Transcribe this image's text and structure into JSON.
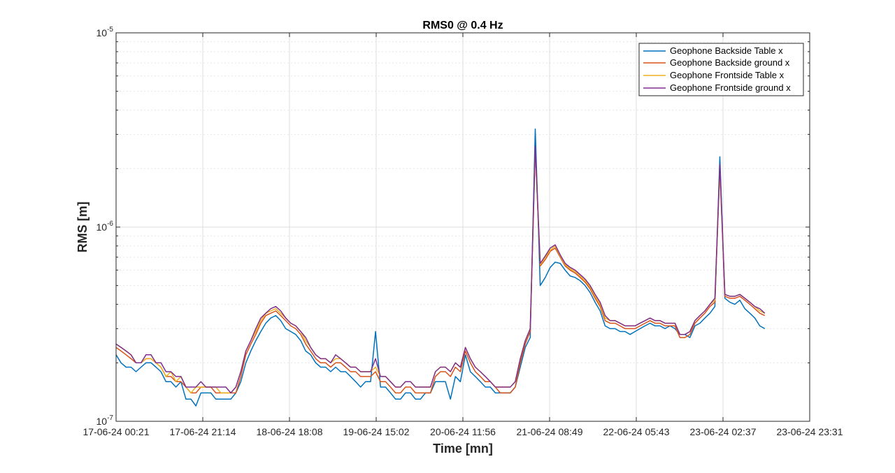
{
  "chart_data": {
    "type": "line",
    "title": "RMS0 @ 0.4 Hz",
    "xlabel": "Time [mn]",
    "ylabel": "RMS [m]",
    "yscale": "log",
    "ylim": [
      1e-07,
      1e-05
    ],
    "xlim": [
      "17-06-24 00:21",
      "23-06-24 23:31"
    ],
    "grid": true,
    "legend_position": "top-right",
    "x_ticks": [
      "17-06-24 00:21",
      "17-06-24 21:14",
      "18-06-24 18:08",
      "19-06-24 15:02",
      "20-06-24 11:56",
      "21-06-24 08:49",
      "22-06-24 05:43",
      "23-06-24 02:37",
      "23-06-24 23:31"
    ],
    "y_ticks": [
      {
        "value": 1e-07,
        "base": "10",
        "exp": "-7"
      },
      {
        "value": 1e-06,
        "base": "10",
        "exp": "-6"
      },
      {
        "value": 1e-05,
        "base": "10",
        "exp": "-5"
      }
    ],
    "x_hours": [
      0,
      1.2,
      2.4,
      3.6,
      4.8,
      6,
      7.2,
      8.4,
      9.6,
      10.8,
      12,
      13.2,
      14.4,
      15.6,
      16.8,
      18,
      19.2,
      20.4,
      21.6,
      22.8,
      24,
      25.2,
      26.4,
      27.6,
      28.8,
      30,
      31.2,
      32.4,
      33.6,
      34.8,
      36,
      37.2,
      38.4,
      39.6,
      40.8,
      42,
      43.2,
      44.4,
      45.6,
      46.8,
      48,
      49.2,
      50.4,
      51.6,
      52.8,
      54,
      55.2,
      56.4,
      57.6,
      58.8,
      60,
      61.2,
      62.4,
      63.6,
      64.8,
      66,
      67.2,
      68.4,
      69.6,
      70.8,
      72,
      73.2,
      74.4,
      75.6,
      76.8,
      78,
      79.2,
      80.4,
      81.6,
      82.8,
      84,
      85.2,
      86.4,
      87.6,
      88.8,
      90,
      91.2,
      92.4,
      93.6,
      94.8,
      96,
      97.2,
      98.4,
      99.6,
      100.8,
      102,
      103.2,
      104.4,
      105.6,
      106.8,
      108,
      109.2,
      110.4,
      111.6,
      112.8,
      114,
      115.2,
      116.4,
      117.6,
      118.8,
      120,
      121.2,
      122.4,
      123.6,
      124.8,
      126,
      127.2,
      128.4,
      129.6,
      130.8,
      132,
      133.2,
      134.4,
      135.6,
      136.8,
      138,
      139.2,
      140.4,
      141.6,
      142.8,
      144,
      145.2,
      146.4,
      147.6,
      148.8,
      150,
      151.2,
      152.4,
      153.6,
      154.8,
      156,
      157.2,
      158.4,
      159.6,
      160.8,
      162,
      163.2,
      164.4,
      165.6,
      166.8
    ],
    "series": [
      {
        "name": "Geophone Backside Table x",
        "color": "#0072BD",
        "values": [
          2.2e-07,
          2e-07,
          1.9e-07,
          1.9e-07,
          1.8e-07,
          1.9e-07,
          2e-07,
          2e-07,
          1.9e-07,
          1.8e-07,
          1.6e-07,
          1.6e-07,
          1.5e-07,
          1.6e-07,
          1.3e-07,
          1.3e-07,
          1.2e-07,
          1.4e-07,
          1.4e-07,
          1.4e-07,
          1.3e-07,
          1.3e-07,
          1.3e-07,
          1.3e-07,
          1.4e-07,
          1.6e-07,
          2e-07,
          2.3e-07,
          2.6e-07,
          2.9e-07,
          3.2e-07,
          3.4e-07,
          3.5e-07,
          3.3e-07,
          3e-07,
          2.9e-07,
          2.8e-07,
          2.6e-07,
          2.3e-07,
          2.2e-07,
          2e-07,
          1.9e-07,
          1.9e-07,
          1.8e-07,
          1.9e-07,
          1.8e-07,
          1.8e-07,
          1.7e-07,
          1.6e-07,
          1.5e-07,
          1.6e-07,
          1.6e-07,
          2.9e-07,
          1.5e-07,
          1.5e-07,
          1.4e-07,
          1.3e-07,
          1.3e-07,
          1.4e-07,
          1.4e-07,
          1.3e-07,
          1.3e-07,
          1.4e-07,
          1.4e-07,
          1.6e-07,
          1.6e-07,
          1.6e-07,
          1.3e-07,
          1.7e-07,
          1.6e-07,
          2.2e-07,
          1.8e-07,
          1.7e-07,
          1.6e-07,
          1.5e-07,
          1.5e-07,
          1.4e-07,
          1.4e-07,
          1.4e-07,
          1.4e-07,
          1.5e-07,
          1.9e-07,
          2.4e-07,
          2.7e-07,
          3.2e-06,
          5e-07,
          5.5e-07,
          6.2e-07,
          6.6e-07,
          6.5e-07,
          6e-07,
          5.6e-07,
          5.5e-07,
          5.3e-07,
          5e-07,
          4.6e-07,
          4.1e-07,
          3.7e-07,
          3.1e-07,
          3e-07,
          3e-07,
          2.9e-07,
          2.9e-07,
          2.8e-07,
          2.9e-07,
          3e-07,
          3.1e-07,
          3.2e-07,
          3.1e-07,
          3.1e-07,
          3e-07,
          3.1e-07,
          3e-07,
          2.8e-07,
          2.8e-07,
          2.7e-07,
          3.1e-07,
          3.2e-07,
          3.4e-07,
          3.6e-07,
          3.9e-07,
          2.3e-06,
          4.3e-07,
          4.1e-07,
          4e-07,
          4.2e-07,
          3.8e-07,
          3.6e-07,
          3.4e-07,
          3.1e-07,
          3e-07
        ]
      },
      {
        "name": "Geophone Backside ground x",
        "color": "#D95319",
        "values": [
          2.4e-07,
          2.3e-07,
          2.2e-07,
          2.1e-07,
          2e-07,
          2e-07,
          2.1e-07,
          2.1e-07,
          2e-07,
          1.9e-07,
          1.7e-07,
          1.7e-07,
          1.6e-07,
          1.6e-07,
          1.5e-07,
          1.4e-07,
          1.4e-07,
          1.5e-07,
          1.5e-07,
          1.5e-07,
          1.4e-07,
          1.4e-07,
          1.4e-07,
          1.4e-07,
          1.4e-07,
          1.7e-07,
          2.2e-07,
          2.5e-07,
          2.8e-07,
          3.2e-07,
          3.5e-07,
          3.6e-07,
          3.7e-07,
          3.5e-07,
          3.3e-07,
          3.1e-07,
          3e-07,
          2.8e-07,
          2.5e-07,
          2.3e-07,
          2.1e-07,
          2e-07,
          2e-07,
          1.9e-07,
          2e-07,
          2e-07,
          1.9e-07,
          1.8e-07,
          1.8e-07,
          1.7e-07,
          1.7e-07,
          1.7e-07,
          1.8e-07,
          1.6e-07,
          1.6e-07,
          1.5e-07,
          1.4e-07,
          1.4e-07,
          1.5e-07,
          1.5e-07,
          1.4e-07,
          1.4e-07,
          1.4e-07,
          1.4e-07,
          1.7e-07,
          1.8e-07,
          1.8e-07,
          1.7e-07,
          1.9e-07,
          1.8e-07,
          2.3e-07,
          2e-07,
          1.8e-07,
          1.7e-07,
          1.6e-07,
          1.6e-07,
          1.5e-07,
          1.4e-07,
          1.4e-07,
          1.4e-07,
          1.5e-07,
          2e-07,
          2.5e-07,
          2.9e-07,
          2.5e-06,
          6.3e-07,
          6.8e-07,
          7.5e-07,
          7.8e-07,
          7e-07,
          6.3e-07,
          6e-07,
          5.8e-07,
          5.5e-07,
          5.2e-07,
          4.8e-07,
          4.3e-07,
          3.9e-07,
          3.3e-07,
          3.2e-07,
          3.2e-07,
          3.1e-07,
          3e-07,
          3e-07,
          3e-07,
          3.1e-07,
          3.2e-07,
          3.3e-07,
          3.2e-07,
          3.2e-07,
          3.1e-07,
          3.1e-07,
          3.1e-07,
          2.7e-07,
          2.7e-07,
          2.8e-07,
          3.2e-07,
          3.4e-07,
          3.6e-07,
          3.9e-07,
          4.1e-07,
          2e-06,
          4.4e-07,
          4.3e-07,
          4.3e-07,
          4.4e-07,
          4.2e-07,
          4e-07,
          3.8e-07,
          3.6e-07,
          3.5e-07
        ]
      },
      {
        "name": "Geophone Frontside Table x",
        "color": "#EDB120",
        "values": [
          2.5e-07,
          2.4e-07,
          2.3e-07,
          2.2e-07,
          2e-07,
          2e-07,
          2.1e-07,
          2.1e-07,
          2e-07,
          1.9e-07,
          1.7e-07,
          1.8e-07,
          1.6e-07,
          1.7e-07,
          1.5e-07,
          1.4e-07,
          1.5e-07,
          1.5e-07,
          1.5e-07,
          1.5e-07,
          1.5e-07,
          1.4e-07,
          1.4e-07,
          1.4e-07,
          1.5e-07,
          1.8e-07,
          2.3e-07,
          2.6e-07,
          2.9e-07,
          3.3e-07,
          3.6e-07,
          3.7e-07,
          3.8e-07,
          3.6e-07,
          3.4e-07,
          3.2e-07,
          3.1e-07,
          2.9e-07,
          2.6e-07,
          2.4e-07,
          2.2e-07,
          2.1e-07,
          2.1e-07,
          2e-07,
          2.1e-07,
          2.1e-07,
          2e-07,
          1.9e-07,
          1.9e-07,
          1.8e-07,
          1.8e-07,
          1.8e-07,
          1.9e-07,
          1.7e-07,
          1.7e-07,
          1.6e-07,
          1.5e-07,
          1.5e-07,
          1.6e-07,
          1.6e-07,
          1.5e-07,
          1.5e-07,
          1.5e-07,
          1.5e-07,
          1.8e-07,
          1.9e-07,
          1.9e-07,
          1.8e-07,
          2e-07,
          1.9e-07,
          2.4e-07,
          2.1e-07,
          1.9e-07,
          1.8e-07,
          1.7e-07,
          1.6e-07,
          1.5e-07,
          1.5e-07,
          1.5e-07,
          1.5e-07,
          1.6e-07,
          2.1e-07,
          2.6e-07,
          3e-07,
          2.5e-06,
          6.4e-07,
          7e-07,
          7.6e-07,
          8e-07,
          7.1e-07,
          6.4e-07,
          6.1e-07,
          5.9e-07,
          5.6e-07,
          5.3e-07,
          4.9e-07,
          4.4e-07,
          4e-07,
          3.4e-07,
          3.3e-07,
          3.3e-07,
          3.2e-07,
          3.1e-07,
          3.1e-07,
          3.1e-07,
          3.2e-07,
          3.3e-07,
          3.4e-07,
          3.3e-07,
          3.3e-07,
          3.2e-07,
          3.2e-07,
          3.2e-07,
          2.8e-07,
          2.8e-07,
          2.9e-07,
          3.3e-07,
          3.5e-07,
          3.7e-07,
          4e-07,
          4.2e-07,
          2e-06,
          4.5e-07,
          4.4e-07,
          4.4e-07,
          4.5e-07,
          4.3e-07,
          4.1e-07,
          3.9e-07,
          3.7e-07,
          3.6e-07
        ]
      },
      {
        "name": "Geophone Frontside ground x",
        "color": "#7E2F8E",
        "values": [
          2.5e-07,
          2.4e-07,
          2.3e-07,
          2.2e-07,
          2e-07,
          2e-07,
          2.2e-07,
          2.2e-07,
          2e-07,
          2e-07,
          1.8e-07,
          1.8e-07,
          1.7e-07,
          1.7e-07,
          1.5e-07,
          1.5e-07,
          1.5e-07,
          1.6e-07,
          1.5e-07,
          1.5e-07,
          1.5e-07,
          1.5e-07,
          1.5e-07,
          1.4e-07,
          1.5e-07,
          1.8e-07,
          2.3e-07,
          2.6e-07,
          3e-07,
          3.4e-07,
          3.6e-07,
          3.8e-07,
          3.9e-07,
          3.7e-07,
          3.4e-07,
          3.2e-07,
          3.1e-07,
          2.9e-07,
          2.7e-07,
          2.4e-07,
          2.2e-07,
          2.1e-07,
          2.1e-07,
          2e-07,
          2.2e-07,
          2.1e-07,
          2e-07,
          1.9e-07,
          1.9e-07,
          1.8e-07,
          1.8e-07,
          1.8e-07,
          2.1e-07,
          1.7e-07,
          1.7e-07,
          1.6e-07,
          1.5e-07,
          1.5e-07,
          1.6e-07,
          1.6e-07,
          1.5e-07,
          1.5e-07,
          1.5e-07,
          1.5e-07,
          1.8e-07,
          1.9e-07,
          1.9e-07,
          1.8e-07,
          2e-07,
          1.9e-07,
          2.4e-07,
          2.1e-07,
          1.9e-07,
          1.8e-07,
          1.7e-07,
          1.6e-07,
          1.5e-07,
          1.5e-07,
          1.5e-07,
          1.5e-07,
          1.6e-07,
          2.1e-07,
          2.6e-07,
          3e-07,
          2.6e-06,
          6.5e-07,
          7.1e-07,
          7.8e-07,
          8.1e-07,
          7.2e-07,
          6.5e-07,
          6.2e-07,
          6e-07,
          5.7e-07,
          5.4e-07,
          5e-07,
          4.5e-07,
          4.1e-07,
          3.5e-07,
          3.3e-07,
          3.3e-07,
          3.2e-07,
          3.1e-07,
          3.1e-07,
          3.1e-07,
          3.2e-07,
          3.3e-07,
          3.4e-07,
          3.3e-07,
          3.3e-07,
          3.2e-07,
          3.2e-07,
          3.2e-07,
          2.8e-07,
          2.8e-07,
          2.9e-07,
          3.3e-07,
          3.5e-07,
          3.7e-07,
          4e-07,
          4.3e-07,
          2.1e-06,
          4.5e-07,
          4.4e-07,
          4.4e-07,
          4.5e-07,
          4.3e-07,
          4.1e-07,
          3.9e-07,
          3.8e-07,
          3.6e-07
        ]
      }
    ]
  }
}
